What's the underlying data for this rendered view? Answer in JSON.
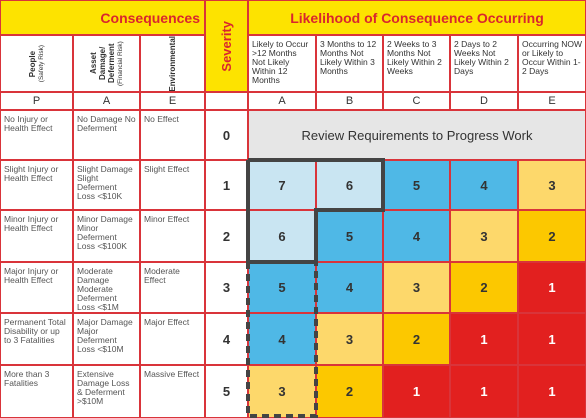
{
  "header": {
    "consequences": "Consequences",
    "likelihood": "Likelihood of Consequence Occurring",
    "severity": "Severity"
  },
  "consequence_columns": [
    {
      "label": "People",
      "sub": "(Safety Risk)",
      "code": "P"
    },
    {
      "label": "Asset Damage/ Deferment",
      "sub": "(Financial Risk)",
      "code": "A"
    },
    {
      "label": "Environmental",
      "code": "E"
    }
  ],
  "likelihood_columns": [
    {
      "label": "Likely to Occur >12 Months Not Likely Within 12 Months",
      "code": "A"
    },
    {
      "label": "3 Months to 12 Months Not Likely Within 3 Months",
      "code": "B"
    },
    {
      "label": "2 Weeks to 3 Months Not Likely Within 2 Weeks",
      "code": "C"
    },
    {
      "label": "2 Days to 2 Weeks Not Likely Within 2 Days",
      "code": "D"
    },
    {
      "label": "Occurring NOW or Likely to Occur Within 1-2 Days",
      "code": "E"
    }
  ],
  "review": "Review Requirements to Progress Work",
  "rows": [
    {
      "severity": 0,
      "people": "No Injury or Health Effect",
      "asset": "No Damage No Deferment",
      "environmental": "No Effect"
    },
    {
      "severity": 1,
      "people": "Slight Injury or Health Effect",
      "asset": "Slight Damage Slight Deferment Loss <$10K",
      "environmental": "Slight Effect",
      "values": [
        7,
        6,
        5,
        4,
        3
      ],
      "colors": [
        "#c9e5f2",
        "#c9e5f2",
        "#4fb8e6",
        "#4fb8e6",
        "#fdd86b"
      ]
    },
    {
      "severity": 2,
      "people": "Minor Injury or Health Effect",
      "asset": "Minor Damage Minor Deferment Loss <$100K",
      "environmental": "Minor Effect",
      "values": [
        6,
        5,
        4,
        3,
        2
      ],
      "colors": [
        "#c9e5f2",
        "#4fb8e6",
        "#4fb8e6",
        "#fdd86b",
        "#fcc800"
      ]
    },
    {
      "severity": 3,
      "people": "Major Injury or Health Effect",
      "asset": "Moderate Damage Moderate Deferment Loss <$1M",
      "environmental": "Moderate Effect",
      "values": [
        5,
        4,
        3,
        2,
        1
      ],
      "colors": [
        "#4fb8e6",
        "#4fb8e6",
        "#fdd86b",
        "#fcc800",
        "#e2201f"
      ]
    },
    {
      "severity": 4,
      "people": "Permanent Total Disability or up to 3 Fatalities",
      "asset": "Major Damage Major Deferment Loss <$10M",
      "environmental": "Major Effect",
      "values": [
        4,
        3,
        2,
        1,
        1
      ],
      "colors": [
        "#4fb8e6",
        "#fdd86b",
        "#fcc800",
        "#e2201f",
        "#e2201f"
      ]
    },
    {
      "severity": 5,
      "people": "More than 3 Fatalities",
      "asset": "Extensive Damage Loss & Deferment >$10M",
      "environmental": "Massive Effect",
      "values": [
        3,
        2,
        1,
        1,
        1
      ],
      "colors": [
        "#fdd86b",
        "#fcc800",
        "#e2201f",
        "#e2201f",
        "#e2201f"
      ]
    }
  ]
}
